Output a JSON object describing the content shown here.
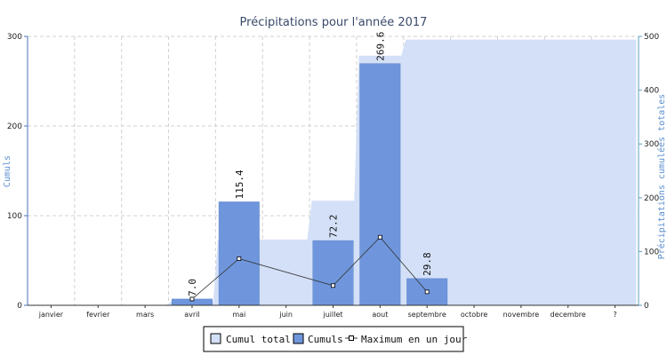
{
  "chart_data": {
    "type": "bar",
    "title": "Précipitations pour l'année 2017",
    "categories": [
      "janvier",
      "fevrier",
      "mars",
      "avril",
      "mai",
      "juin",
      "juillet",
      "aout",
      "septembre",
      "octobre",
      "novembre",
      "decembre",
      "?"
    ],
    "ylabel_left": "Cumuls",
    "ylabel_right": "Précipitations cumulées totales",
    "ylim_left": [
      0,
      300
    ],
    "ylim_right": [
      0,
      500
    ],
    "yticks_left": [
      0,
      100,
      200,
      300
    ],
    "yticks_right": [
      0,
      100,
      200,
      300,
      400,
      500
    ],
    "grid": true,
    "legend_position": "bottom-center",
    "series": [
      {
        "name": "Cumul total",
        "type": "area",
        "axis": "right",
        "color": "#d3e0f7",
        "values": [
          0,
          0,
          0,
          7.0,
          122.4,
          122.4,
          194.6,
          464.2,
          494.0,
          494.0,
          494.0,
          494.0,
          494.0
        ]
      },
      {
        "name": "Cumuls",
        "type": "bar",
        "axis": "left",
        "color": "#6f96dc",
        "values": [
          0,
          0,
          0,
          7.0,
          115.4,
          0,
          72.2,
          269.6,
          29.8,
          0,
          0,
          0,
          0
        ],
        "labels": [
          "",
          "",
          "",
          "7.0",
          "115.4",
          "",
          "72.2",
          "269.6",
          "29.8",
          "",
          "",
          "",
          ""
        ]
      },
      {
        "name": "Maximum en un jour",
        "type": "line",
        "axis": "left",
        "color": "#333333",
        "values": [
          null,
          null,
          null,
          7,
          52,
          null,
          22,
          76,
          15,
          null,
          null,
          null,
          null
        ]
      }
    ]
  }
}
